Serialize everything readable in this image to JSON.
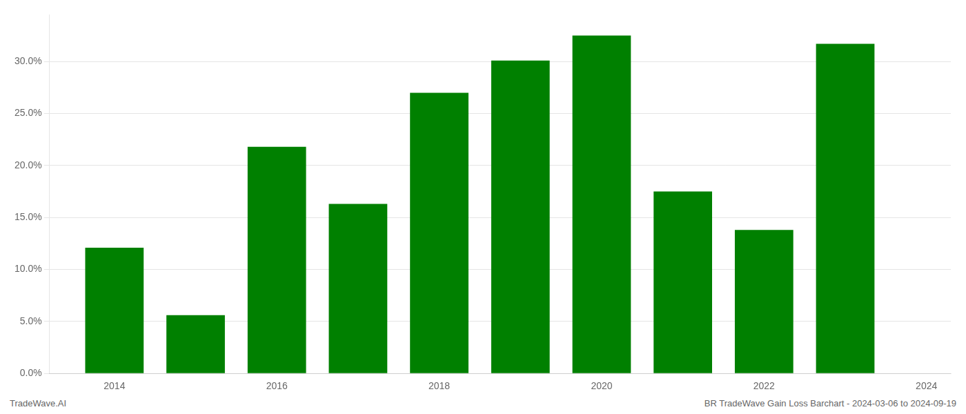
{
  "chart_data": {
    "type": "bar",
    "x": [
      2014,
      2015,
      2016,
      2017,
      2018,
      2019,
      2020,
      2021,
      2022,
      2023
    ],
    "values": [
      0.121,
      0.056,
      0.218,
      0.163,
      0.27,
      0.301,
      0.325,
      0.175,
      0.138,
      0.317
    ],
    "color": "#008000",
    "xlim": [
      2013.2,
      2024.3
    ],
    "xticks": [
      2014,
      2016,
      2018,
      2020,
      2022,
      2024
    ],
    "ylim": [
      0,
      0.345
    ],
    "yticks": [
      {
        "value": 0.0,
        "label": "0.0%"
      },
      {
        "value": 0.05,
        "label": "5.0%"
      },
      {
        "value": 0.1,
        "label": "10.0%"
      },
      {
        "value": 0.15,
        "label": "15.0%"
      },
      {
        "value": 0.2,
        "label": "20.0%"
      },
      {
        "value": 0.25,
        "label": "25.0%"
      },
      {
        "value": 0.3,
        "label": "30.0%"
      }
    ],
    "grid": true,
    "annotations": [
      "TradeWave.AI",
      "BR TradeWave Gain Loss Barchart - 2024-03-06 to 2024-09-19"
    ]
  }
}
